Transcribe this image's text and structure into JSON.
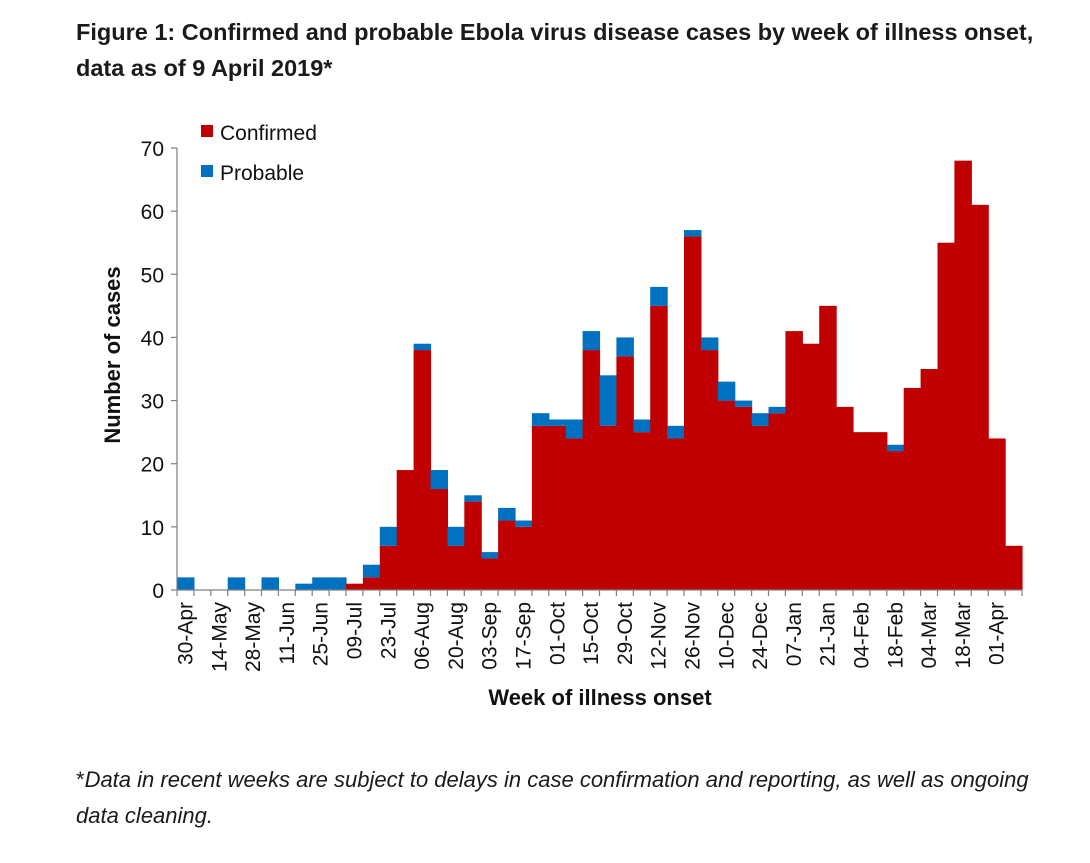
{
  "title": "Figure 1: Confirmed and probable Ebola virus disease cases by week of illness onset, data as of 9 April 2019*",
  "footnote_star": "*",
  "footnote_text": "Data in recent weeks are subject to delays in case confirmation and reporting, as well as ongoing data cleaning.",
  "colors": {
    "confirmed": "#c00000",
    "probable": "#0070c0"
  },
  "chart_data": {
    "type": "bar",
    "stacked": true,
    "xlabel": "Week of illness onset",
    "ylabel": "Number of cases",
    "ylim": [
      0,
      70
    ],
    "yticks": [
      0,
      10,
      20,
      30,
      40,
      50,
      60,
      70
    ],
    "legend": {
      "position": "top-left",
      "entries": [
        "Confirmed",
        "Probable"
      ]
    },
    "grid": false,
    "tick_labels": [
      "30-Apr",
      "14-May",
      "28-May",
      "11-Jun",
      "25-Jun",
      "09-Jul",
      "23-Jul",
      "06-Aug",
      "20-Aug",
      "03-Sep",
      "17-Sep",
      "01-Oct",
      "15-Oct",
      "29-Oct",
      "12-Nov",
      "26-Nov",
      "10-Dec",
      "24-Dec",
      "07-Jan",
      "21-Jan",
      "04-Feb",
      "18-Feb",
      "04-Mar",
      "18-Mar",
      "01-Apr"
    ],
    "categories": [
      "30-Apr",
      "07-May",
      "14-May",
      "21-May",
      "28-May",
      "04-Jun",
      "11-Jun",
      "18-Jun",
      "25-Jun",
      "02-Jul",
      "09-Jul",
      "16-Jul",
      "23-Jul",
      "30-Jul",
      "06-Aug",
      "13-Aug",
      "20-Aug",
      "27-Aug",
      "03-Sep",
      "10-Sep",
      "17-Sep",
      "24-Sep",
      "01-Oct",
      "08-Oct",
      "15-Oct",
      "22-Oct",
      "29-Oct",
      "05-Nov",
      "12-Nov",
      "19-Nov",
      "26-Nov",
      "03-Dec",
      "10-Dec",
      "17-Dec",
      "24-Dec",
      "31-Dec",
      "07-Jan",
      "14-Jan",
      "21-Jan",
      "28-Jan",
      "04-Feb",
      "11-Feb",
      "18-Feb",
      "25-Feb",
      "04-Mar",
      "11-Mar",
      "18-Mar",
      "25-Mar",
      "01-Apr",
      "08-Apr"
    ],
    "series": [
      {
        "name": "Confirmed",
        "values": [
          0,
          0,
          0,
          0,
          0,
          0,
          0,
          0,
          0,
          0,
          1,
          2,
          7,
          19,
          38,
          16,
          7,
          14,
          5,
          11,
          10,
          26,
          26,
          24,
          38,
          26,
          37,
          25,
          45,
          24,
          56,
          38,
          30,
          29,
          26,
          28,
          41,
          39,
          45,
          29,
          25,
          25,
          22,
          32,
          35,
          55,
          68,
          61,
          24,
          7
        ]
      },
      {
        "name": "Probable",
        "values": [
          2,
          0,
          0,
          2,
          0,
          2,
          0,
          1,
          2,
          2,
          0,
          2,
          3,
          0,
          1,
          3,
          3,
          1,
          1,
          2,
          1,
          2,
          1,
          3,
          3,
          8,
          3,
          2,
          3,
          2,
          1,
          2,
          3,
          1,
          2,
          1,
          0,
          0,
          0,
          0,
          0,
          0,
          1,
          0,
          0,
          0,
          0,
          0,
          0,
          0
        ]
      }
    ]
  }
}
